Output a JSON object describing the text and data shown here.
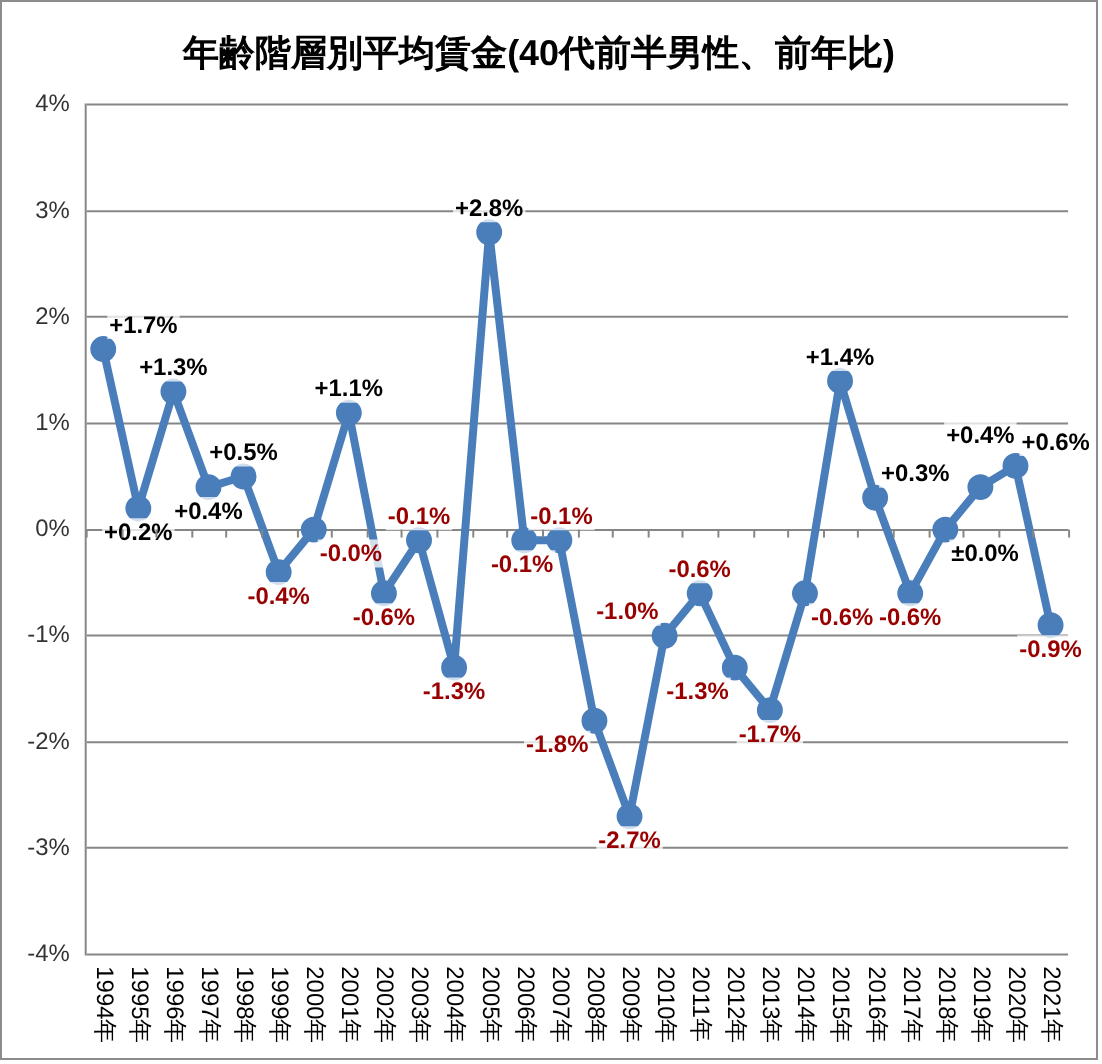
{
  "chart_data": {
    "type": "line",
    "title": "年齢階層別平均賃金(40代前半男性、前年比)",
    "categories": [
      "1994年",
      "1995年",
      "1996年",
      "1997年",
      "1998年",
      "1999年",
      "2000年",
      "2001年",
      "2002年",
      "2003年",
      "2004年",
      "2005年",
      "2006年",
      "2007年",
      "2008年",
      "2009年",
      "2010年",
      "2011年",
      "2012年",
      "2013年",
      "2014年",
      "2015年",
      "2016年",
      "2017年",
      "2018年",
      "2019年",
      "2020年",
      "2021年"
    ],
    "values": [
      1.7,
      0.2,
      1.3,
      0.4,
      0.5,
      -0.4,
      -0.0,
      1.1,
      -0.6,
      -0.1,
      -1.3,
      2.8,
      -0.1,
      -0.1,
      -1.8,
      -2.7,
      -1.0,
      -0.6,
      -1.3,
      -1.7,
      -0.6,
      1.4,
      0.3,
      -0.6,
      0.0,
      0.4,
      0.6,
      -0.9
    ],
    "value_labels": [
      "+1.7%",
      "+0.2%",
      "+1.3%",
      "+0.4%",
      "+0.5%",
      "-0.4%",
      "-0.0%",
      "+1.1%",
      "-0.6%",
      "-0.1%",
      "-1.3%",
      "+2.8%",
      "-0.1%",
      "-0.1%",
      "-1.8%",
      "-2.7%",
      "-1.0%",
      "-0.6%",
      "-1.3%",
      "-1.7%",
      "-0.6%",
      "+1.4%",
      "+0.3%",
      "-0.6%",
      "±0.0%",
      "+0.4%",
      "+0.6%",
      "-0.9%"
    ],
    "color": "#4a7ebb",
    "ylim": [
      -4,
      4
    ],
    "yticks": [
      {
        "value": -4,
        "label": "-4%"
      },
      {
        "value": -3,
        "label": "-3%"
      },
      {
        "value": -2,
        "label": "-2%"
      },
      {
        "value": -1,
        "label": "-1%"
      },
      {
        "value": 0,
        "label": "0%"
      },
      {
        "value": 1,
        "label": "1%"
      },
      {
        "value": 2,
        "label": "2%"
      },
      {
        "value": 3,
        "label": "3%"
      },
      {
        "value": 4,
        "label": "4%"
      }
    ],
    "grid": "y",
    "marker": "circle",
    "line_style": "solid"
  }
}
